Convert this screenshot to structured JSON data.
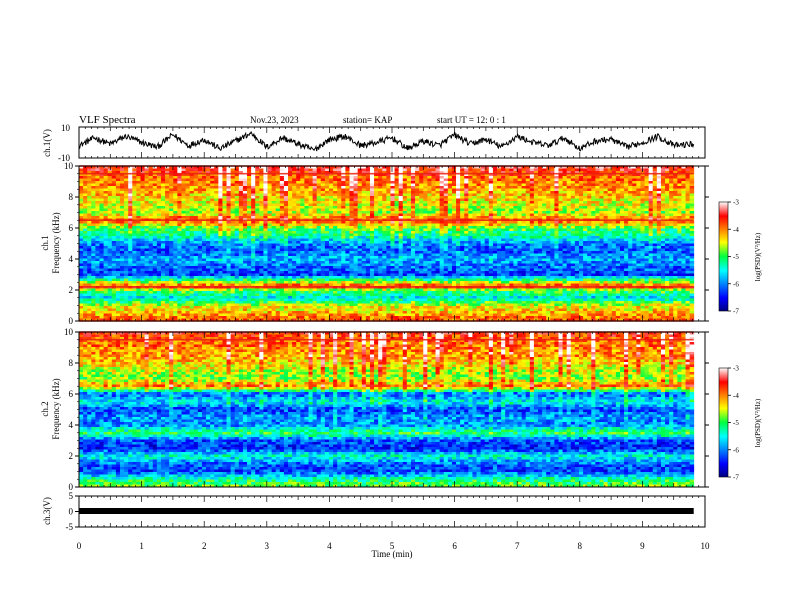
{
  "header": {
    "title": "VLF Spectra",
    "date": "Nov.23, 2023",
    "station": "station= KAP",
    "start_ut": "start  UT =   12: 0   : 1"
  },
  "chart_data": [
    {
      "type": "line",
      "ylabel": "ch.1(V)",
      "ylim": [
        -10,
        10
      ],
      "yticks": [
        10,
        -10
      ],
      "xlim": [
        0,
        10
      ],
      "x_end": 9.82,
      "series": [
        {
          "x": [
            0,
            0.25,
            0.5,
            0.75,
            1,
            1.25,
            1.5,
            1.75,
            2,
            2.25,
            2.5,
            2.75,
            3,
            3.25,
            3.5,
            3.75,
            4,
            4.25,
            4.5,
            4.75,
            5,
            5.25,
            5.5,
            5.75,
            6,
            6.25,
            6.5,
            6.75,
            7,
            7.25,
            7.5,
            7.75,
            8,
            8.25,
            8.5,
            8.75,
            9,
            9.25,
            9.5,
            9.8
          ],
          "y": [
            -2,
            3,
            -1,
            4,
            0,
            -3,
            5,
            -2,
            2,
            -4,
            1,
            6,
            -3,
            3,
            -1,
            -5,
            2,
            4,
            -2,
            0,
            3,
            -4,
            1,
            -2,
            5,
            -1,
            2,
            -3,
            4,
            0,
            -2,
            3,
            -4,
            1,
            2,
            -3,
            0,
            4,
            -2,
            -1
          ]
        }
      ]
    },
    {
      "type": "heatmap",
      "ylabel": "ch.1\nFrequency (kHz)",
      "ylim": [
        0,
        10
      ],
      "yticks": [
        0,
        2,
        4,
        6,
        8,
        10
      ],
      "xlim": [
        0,
        10
      ],
      "x_end": 9.82,
      "clim": [
        -7,
        -3
      ],
      "colorbar_label": "log(PSD)(V²/Hz)",
      "colorbar_ticks": [
        -3,
        -4,
        -5,
        -6,
        -7
      ],
      "bands_khz": [
        {
          "f": 10.0,
          "level": -3.3
        },
        {
          "f": 9.5,
          "level": -3.8
        },
        {
          "f": 9.0,
          "level": -4.0
        },
        {
          "f": 8.5,
          "level": -4.1
        },
        {
          "f": 8.0,
          "level": -4.3
        },
        {
          "f": 7.5,
          "level": -4.5
        },
        {
          "f": 7.0,
          "level": -4.7
        },
        {
          "f": 6.5,
          "level": -3.8
        },
        {
          "f": 6.0,
          "level": -4.9
        },
        {
          "f": 5.5,
          "level": -5.3
        },
        {
          "f": 5.0,
          "level": -6.0
        },
        {
          "f": 4.5,
          "level": -6.2
        },
        {
          "f": 4.0,
          "level": -5.8
        },
        {
          "f": 3.5,
          "level": -6.1
        },
        {
          "f": 3.0,
          "level": -6.3
        },
        {
          "f": 2.5,
          "level": -4.6
        },
        {
          "f": 2.2,
          "level": -3.6
        },
        {
          "f": 2.0,
          "level": -4.8
        },
        {
          "f": 1.5,
          "level": -5.6
        },
        {
          "f": 1.0,
          "level": -4.5
        },
        {
          "f": 0.5,
          "level": -4.2
        },
        {
          "f": 0.0,
          "level": -3.8
        }
      ]
    },
    {
      "type": "heatmap",
      "ylabel": "ch.2\nFrequency (kHz)",
      "ylim": [
        0,
        10
      ],
      "yticks": [
        0,
        2,
        4,
        6,
        8,
        10
      ],
      "xlim": [
        0,
        10
      ],
      "x_end": 9.82,
      "clim": [
        -7,
        -3
      ],
      "colorbar_label": "log(PSD)(V²/Hz)",
      "colorbar_ticks": [
        -3,
        -4,
        -5,
        -6,
        -7
      ],
      "bands_khz": [
        {
          "f": 10.0,
          "level": -3.6
        },
        {
          "f": 9.5,
          "level": -3.9
        },
        {
          "f": 9.0,
          "level": -4.0
        },
        {
          "f": 8.5,
          "level": -4.1
        },
        {
          "f": 8.0,
          "level": -4.3
        },
        {
          "f": 7.5,
          "level": -4.6
        },
        {
          "f": 7.0,
          "level": -4.8
        },
        {
          "f": 6.5,
          "level": -4.0
        },
        {
          "f": 6.0,
          "level": -6.2
        },
        {
          "f": 5.5,
          "level": -5.5
        },
        {
          "f": 5.0,
          "level": -6.3
        },
        {
          "f": 4.5,
          "level": -5.9
        },
        {
          "f": 4.0,
          "level": -6.0
        },
        {
          "f": 3.5,
          "level": -5.0
        },
        {
          "f": 3.0,
          "level": -6.2
        },
        {
          "f": 2.5,
          "level": -6.4
        },
        {
          "f": 2.0,
          "level": -5.4
        },
        {
          "f": 1.5,
          "level": -6.1
        },
        {
          "f": 1.0,
          "level": -6.3
        },
        {
          "f": 0.5,
          "level": -5.2
        },
        {
          "f": 0.0,
          "level": -4.8
        }
      ]
    },
    {
      "type": "line",
      "ylabel": "ch.3(V)",
      "ylim": [
        -5,
        5
      ],
      "yticks": [
        5,
        0,
        -5
      ],
      "xlim": [
        0,
        10
      ],
      "x_end": 9.82,
      "series": [
        {
          "x": [
            0,
            9.82
          ],
          "y": [
            0,
            0
          ]
        }
      ]
    }
  ],
  "xaxis": {
    "label": "Time (min)",
    "ticks": [
      "0",
      "1",
      "2",
      "3",
      "4",
      "5",
      "6",
      "7",
      "8",
      "9",
      "10"
    ]
  }
}
